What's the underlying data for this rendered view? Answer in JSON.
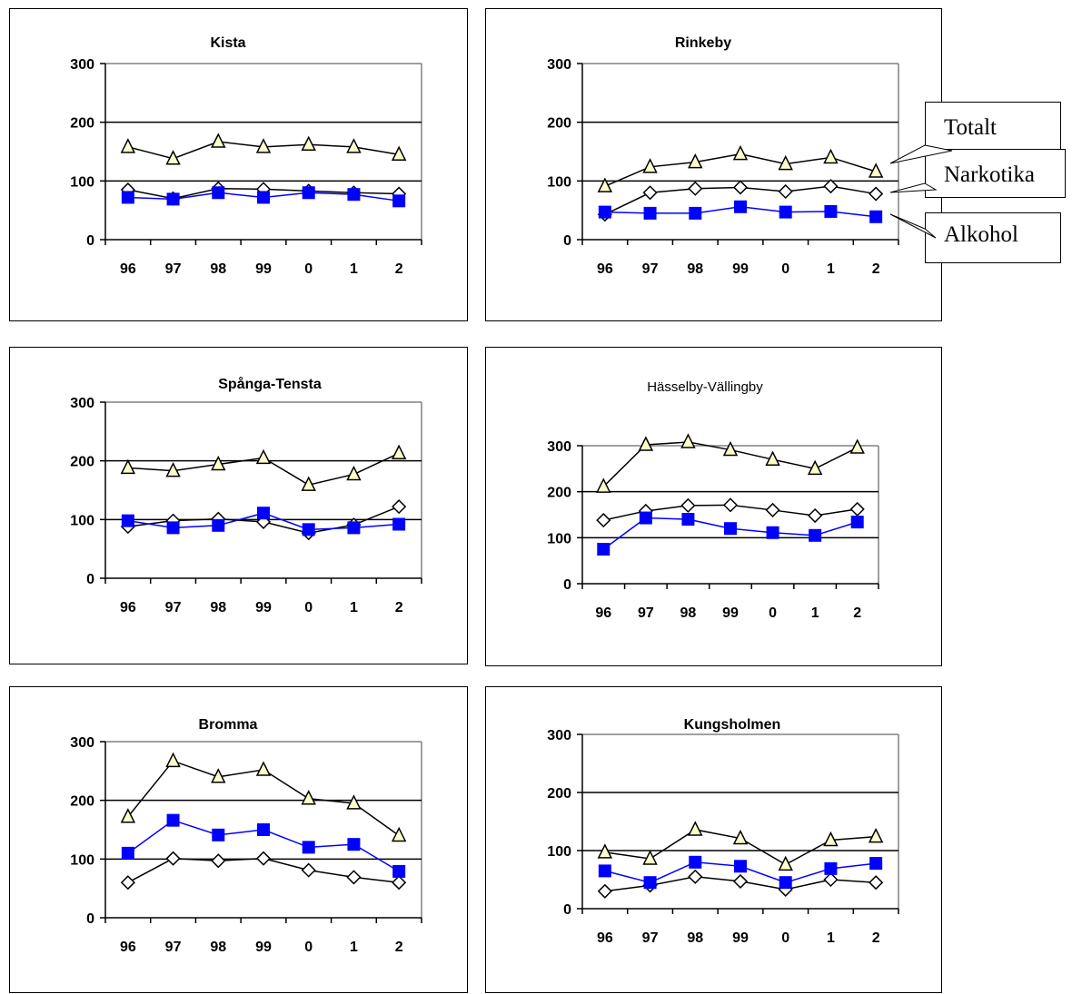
{
  "legend": {
    "totalt": "Totalt",
    "narkotika": "Narkotika",
    "alkohol": "Alkohol"
  },
  "colors": {
    "totalt_fill": "#FFFFCC",
    "alkohol": "#0000FF",
    "frame": "#000000"
  },
  "chart_data": [
    {
      "type": "line",
      "title": "Kista",
      "categories": [
        "96",
        "97",
        "98",
        "99",
        "0",
        "1",
        "2"
      ],
      "ylim": [
        0,
        300
      ],
      "yticks": [
        "0",
        "100",
        "200",
        "300"
      ],
      "grid": true,
      "series": [
        {
          "name": "Totalt",
          "marker": "triangle",
          "values": [
            158,
            138,
            167,
            158,
            162,
            158,
            145
          ]
        },
        {
          "name": "Narkotika",
          "marker": "diamond",
          "values": [
            85,
            70,
            87,
            86,
            83,
            80,
            78
          ]
        },
        {
          "name": "Alkohol",
          "marker": "square",
          "values": [
            72,
            69,
            80,
            72,
            80,
            77,
            66
          ]
        }
      ]
    },
    {
      "type": "line",
      "title": "Rinkeby",
      "categories": [
        "96",
        "97",
        "98",
        "99",
        "0",
        "1",
        "2"
      ],
      "ylim": [
        0,
        300
      ],
      "yticks": [
        "0",
        "100",
        "200",
        "300"
      ],
      "grid": true,
      "series": [
        {
          "name": "Totalt",
          "marker": "triangle",
          "values": [
            91,
            124,
            132,
            146,
            129,
            140,
            116
          ]
        },
        {
          "name": "Narkotika",
          "marker": "diamond",
          "values": [
            43,
            80,
            87,
            89,
            82,
            91,
            78
          ]
        },
        {
          "name": "Alkohol",
          "marker": "square",
          "values": [
            47,
            45,
            45,
            56,
            47,
            48,
            39
          ]
        }
      ]
    },
    {
      "type": "line",
      "title": "Spånga-Tensta",
      "categories": [
        "96",
        "97",
        "98",
        "99",
        "0",
        "1",
        "2"
      ],
      "ylim": [
        0,
        300
      ],
      "yticks": [
        "0",
        "100",
        "200",
        "300"
      ],
      "grid": true,
      "series": [
        {
          "name": "Totalt",
          "marker": "triangle",
          "values": [
            188,
            183,
            194,
            205,
            159,
            177,
            213
          ]
        },
        {
          "name": "Narkotika",
          "marker": "diamond",
          "values": [
            88,
            98,
            101,
            96,
            77,
            91,
            122
          ]
        },
        {
          "name": "Alkohol",
          "marker": "square",
          "values": [
            98,
            86,
            90,
            111,
            83,
            86,
            92
          ]
        }
      ]
    },
    {
      "type": "line",
      "title": "Hässelby-Vällingby",
      "categories": [
        "96",
        "97",
        "98",
        "99",
        "0",
        "1",
        "2"
      ],
      "ylim": [
        0,
        300
      ],
      "yticks": [
        "0",
        "100",
        "200",
        "300"
      ],
      "grid": true,
      "series": [
        {
          "name": "Totalt",
          "marker": "triangle",
          "values": [
            211,
            302,
            308,
            291,
            270,
            250,
            296
          ]
        },
        {
          "name": "Narkotika",
          "marker": "diamond",
          "values": [
            138,
            158,
            170,
            171,
            160,
            148,
            162
          ]
        },
        {
          "name": "Alkohol",
          "marker": "square",
          "values": [
            75,
            143,
            140,
            120,
            111,
            105,
            134
          ]
        }
      ]
    },
    {
      "type": "line",
      "title": "Bromma",
      "categories": [
        "96",
        "97",
        "98",
        "99",
        "0",
        "1",
        "2"
      ],
      "ylim": [
        0,
        300
      ],
      "yticks": [
        "0",
        "100",
        "200",
        "300"
      ],
      "grid": true,
      "series": [
        {
          "name": "Totalt",
          "marker": "triangle",
          "values": [
            172,
            267,
            240,
            252,
            203,
            195,
            140
          ]
        },
        {
          "name": "Narkotika",
          "marker": "diamond",
          "values": [
            60,
            101,
            97,
            101,
            81,
            69,
            60
          ]
        },
        {
          "name": "Alkohol",
          "marker": "square",
          "values": [
            110,
            166,
            141,
            150,
            120,
            125,
            79
          ]
        }
      ]
    },
    {
      "type": "line",
      "title": "Kungsholmen",
      "categories": [
        "96",
        "97",
        "98",
        "99",
        "0",
        "1",
        "2"
      ],
      "ylim": [
        0,
        300
      ],
      "yticks": [
        "0",
        "100",
        "200",
        "300"
      ],
      "grid": true,
      "series": [
        {
          "name": "Totalt",
          "marker": "triangle",
          "values": [
            97,
            86,
            136,
            121,
            76,
            118,
            124
          ]
        },
        {
          "name": "Narkotika",
          "marker": "diamond",
          "values": [
            30,
            40,
            55,
            47,
            33,
            50,
            45
          ]
        },
        {
          "name": "Alkohol",
          "marker": "square",
          "values": [
            65,
            45,
            80,
            73,
            45,
            69,
            78
          ]
        }
      ]
    }
  ]
}
